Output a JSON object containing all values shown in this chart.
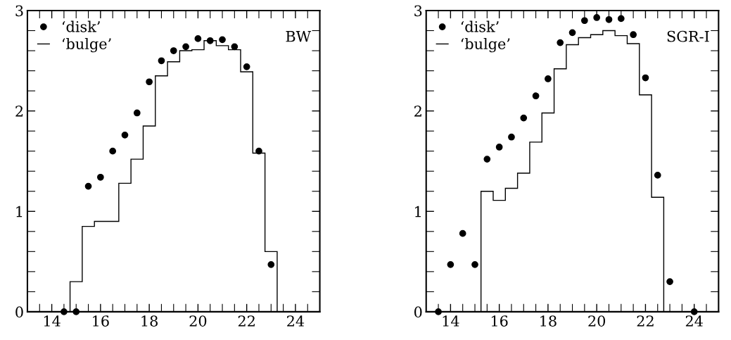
{
  "chart_data": [
    {
      "type": "scatter",
      "annotations": [
        "BW"
      ],
      "legend": "top left",
      "marker": "circle",
      "xlim": [
        13,
        25
      ],
      "ylim": [
        0,
        3
      ],
      "xticks": [
        {
          "value": 13.5,
          "label": null
        },
        14,
        {
          "value": 14.5,
          "label": null
        },
        {
          "value": 15,
          "label": null
        },
        {
          "value": 15.5,
          "label": null
        },
        16,
        {
          "value": 16.5,
          "label": null
        },
        {
          "value": 17,
          "label": null
        },
        {
          "value": 17.5,
          "label": null
        },
        18,
        {
          "value": 18.5,
          "label": null
        },
        {
          "value": 19,
          "label": null
        },
        {
          "value": 19.5,
          "label": null
        },
        20,
        {
          "value": 20.5,
          "label": null
        },
        {
          "value": 21,
          "label": null
        },
        {
          "value": 21.5,
          "label": null
        },
        22,
        {
          "value": 22.5,
          "label": null
        },
        {
          "value": 23,
          "label": null
        },
        {
          "value": 23.5,
          "label": null
        },
        24,
        {
          "value": 24.5,
          "label": null
        }
      ],
      "yticks": [
        0,
        {
          "value": 0.2,
          "label": null
        },
        {
          "value": 0.4,
          "label": null
        },
        {
          "value": 0.6,
          "label": null
        },
        {
          "value": 0.8,
          "label": null
        },
        1,
        {
          "value": 1.2,
          "label": null
        },
        {
          "value": 1.4,
          "label": null
        },
        {
          "value": 1.6,
          "label": null
        },
        {
          "value": 1.8,
          "label": null
        },
        2,
        {
          "value": 2.2,
          "label": null
        },
        {
          "value": 2.4,
          "label": null
        },
        {
          "value": 2.6,
          "label": null
        },
        {
          "value": 2.8,
          "label": null
        },
        3
      ],
      "series": [
        {
          "name": "‘disk’",
          "color": "#000000",
          "x": [
            14.5,
            15,
            15.5,
            16,
            16.5,
            17,
            17.5,
            18,
            18.5,
            19,
            19.5,
            20,
            20.5,
            21,
            21.5,
            22,
            22.5,
            23
          ],
          "values": [
            0,
            0,
            1.25,
            1.34,
            1.6,
            1.76,
            1.98,
            2.29,
            2.5,
            2.6,
            2.64,
            2.72,
            2.7,
            2.71,
            2.64,
            2.44,
            1.6,
            0.47
          ]
        },
        {
          "name": "‘bulge’",
          "type": "histogram",
          "color": "#000000",
          "bins": [
            14.75,
            15.25,
            15.75,
            16.25,
            16.75,
            17.25,
            17.75,
            18.25,
            18.75,
            19.25,
            19.75,
            20.25,
            20.75,
            21.25,
            21.75,
            22.25,
            22.75,
            23.25
          ],
          "values": [
            0.3,
            0.85,
            0.9,
            0.9,
            1.28,
            1.52,
            1.85,
            2.35,
            2.49,
            2.6,
            2.61,
            2.7,
            2.65,
            2.61,
            2.39,
            1.58,
            0.6
          ]
        }
      ]
    },
    {
      "type": "scatter",
      "annotations": [
        "SGR-I"
      ],
      "legend": "top left",
      "marker": "circle",
      "xlim": [
        13,
        25
      ],
      "ylim": [
        0,
        3
      ],
      "xticks": [
        {
          "value": 13.5,
          "label": null
        },
        14,
        {
          "value": 14.5,
          "label": null
        },
        {
          "value": 15,
          "label": null
        },
        {
          "value": 15.5,
          "label": null
        },
        16,
        {
          "value": 16.5,
          "label": null
        },
        {
          "value": 17,
          "label": null
        },
        {
          "value": 17.5,
          "label": null
        },
        18,
        {
          "value": 18.5,
          "label": null
        },
        {
          "value": 19,
          "label": null
        },
        {
          "value": 19.5,
          "label": null
        },
        20,
        {
          "value": 20.5,
          "label": null
        },
        {
          "value": 21,
          "label": null
        },
        {
          "value": 21.5,
          "label": null
        },
        22,
        {
          "value": 22.5,
          "label": null
        },
        {
          "value": 23,
          "label": null
        },
        {
          "value": 23.5,
          "label": null
        },
        24,
        {
          "value": 24.5,
          "label": null
        }
      ],
      "yticks": [
        0,
        {
          "value": 0.2,
          "label": null
        },
        {
          "value": 0.4,
          "label": null
        },
        {
          "value": 0.6,
          "label": null
        },
        {
          "value": 0.8,
          "label": null
        },
        1,
        {
          "value": 1.2,
          "label": null
        },
        {
          "value": 1.4,
          "label": null
        },
        {
          "value": 1.6,
          "label": null
        },
        {
          "value": 1.8,
          "label": null
        },
        2,
        {
          "value": 2.2,
          "label": null
        },
        {
          "value": 2.4,
          "label": null
        },
        {
          "value": 2.6,
          "label": null
        },
        {
          "value": 2.8,
          "label": null
        },
        3
      ],
      "series": [
        {
          "name": "‘disk’",
          "color": "#000000",
          "x": [
            13.5,
            14,
            14.5,
            15,
            15.5,
            16,
            16.5,
            17,
            17.5,
            18,
            18.5,
            19,
            19.5,
            20,
            20.5,
            21,
            21.5,
            22,
            22.5,
            23,
            24
          ],
          "values": [
            0,
            0.47,
            0.78,
            0.47,
            1.52,
            1.64,
            1.74,
            1.93,
            2.15,
            2.32,
            2.68,
            2.78,
            2.9,
            2.93,
            2.91,
            2.92,
            2.76,
            2.33,
            1.36,
            0.3,
            0
          ]
        },
        {
          "name": "‘bulge’",
          "type": "histogram",
          "color": "#000000",
          "bins": [
            15.25,
            15.75,
            16.25,
            16.75,
            17.25,
            17.75,
            18.25,
            18.75,
            19.25,
            19.75,
            20.25,
            20.75,
            21.25,
            21.75,
            22.25,
            22.75
          ],
          "values": [
            1.2,
            1.11,
            1.23,
            1.38,
            1.69,
            1.98,
            2.42,
            2.66,
            2.73,
            2.76,
            2.8,
            2.75,
            2.67,
            2.16,
            1.14
          ]
        }
      ]
    }
  ]
}
